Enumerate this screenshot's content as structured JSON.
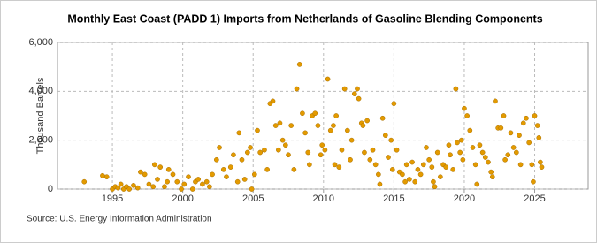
{
  "chart_data": {
    "type": "scatter",
    "title": "Monthly East Coast (PADD 1) Imports from Netherlands of Gasoline Blending Components",
    "y_label": "Thousand Barrels",
    "source": "Source: U.S. Energy Information Administration",
    "xlim": [
      1991.1,
      2028.8
    ],
    "xticks": [
      1995,
      2000,
      2005,
      2010,
      2015,
      2020,
      2025
    ],
    "ylim": [
      0,
      6000
    ],
    "yticks": [
      0,
      {
        "value": 2000,
        "label": "2,000"
      },
      {
        "value": 4000,
        "label": "4,000"
      },
      {
        "value": 6000,
        "label": "6,000"
      }
    ],
    "grid": true,
    "series": [
      {
        "color": "#e39a00",
        "x": [
          1993.0,
          1994.3,
          1994.6,
          1995.0,
          1995.2,
          1995.4,
          1995.6,
          1995.8,
          1996.0,
          1996.2,
          1996.5,
          1996.8,
          1997.0,
          1997.3,
          1997.6,
          1997.9,
          1998.0,
          1998.2,
          1998.4,
          1998.7,
          1998.9,
          1999.0,
          1999.3,
          1999.6,
          1999.9,
          2000.1,
          2000.4,
          2000.7,
          2000.9,
          2001.1,
          2001.4,
          2001.7,
          2001.9,
          2002.1,
          2002.4,
          2002.6,
          2002.9,
          2003.1,
          2003.4,
          2003.6,
          2003.9,
          2004.0,
          2004.2,
          2004.4,
          2004.6,
          2004.8,
          2004.9,
          2005.1,
          2005.3,
          2005.5,
          2005.8,
          2006.0,
          2006.2,
          2006.4,
          2006.6,
          2006.8,
          2006.9,
          2007.1,
          2007.3,
          2007.5,
          2007.7,
          2007.9,
          2008.1,
          2008.3,
          2008.5,
          2008.7,
          2008.9,
          2009.0,
          2009.2,
          2009.4,
          2009.6,
          2009.8,
          2009.9,
          2010.1,
          2010.3,
          2010.5,
          2010.7,
          2010.8,
          2010.9,
          2011.1,
          2011.3,
          2011.5,
          2011.7,
          2011.9,
          2012.0,
          2012.2,
          2012.4,
          2012.5,
          2012.7,
          2012.8,
          2012.9,
          2013.1,
          2013.3,
          2013.5,
          2013.7,
          2013.9,
          2014.0,
          2014.2,
          2014.4,
          2014.6,
          2014.8,
          2014.9,
          2015.0,
          2015.2,
          2015.4,
          2015.6,
          2015.8,
          2015.9,
          2016.1,
          2016.3,
          2016.5,
          2016.7,
          2016.9,
          2017.1,
          2017.3,
          2017.5,
          2017.7,
          2017.8,
          2017.9,
          2018.1,
          2018.3,
          2018.5,
          2018.7,
          2018.9,
          2019.0,
          2019.2,
          2019.4,
          2019.5,
          2019.7,
          2019.8,
          2019.9,
          2020.0,
          2020.2,
          2020.4,
          2020.6,
          2020.8,
          2020.9,
          2021.1,
          2021.3,
          2021.5,
          2021.7,
          2021.9,
          2022.0,
          2022.2,
          2022.4,
          2022.6,
          2022.8,
          2022.9,
          2023.1,
          2023.3,
          2023.5,
          2023.7,
          2023.9,
          2024.0,
          2024.2,
          2024.4,
          2024.6,
          2024.8,
          2024.9,
          2025.0,
          2025.2,
          2025.3,
          2025.4,
          2025.5
        ],
        "values": [
          300,
          550,
          500,
          0,
          100,
          50,
          200,
          0,
          100,
          0,
          150,
          50,
          700,
          600,
          200,
          100,
          1000,
          400,
          900,
          100,
          300,
          800,
          600,
          300,
          0,
          200,
          500,
          0,
          300,
          400,
          200,
          300,
          100,
          600,
          1200,
          1700,
          800,
          500,
          900,
          1400,
          300,
          2300,
          1200,
          400,
          1500,
          1700,
          0,
          600,
          2400,
          1500,
          1600,
          800,
          3500,
          3600,
          2600,
          1600,
          2700,
          2000,
          1800,
          1400,
          2600,
          800,
          4100,
          5100,
          3100,
          2300,
          1500,
          1000,
          3000,
          3100,
          2600,
          1400,
          1800,
          1600,
          4500,
          2400,
          2600,
          1000,
          3000,
          900,
          1600,
          4100,
          2400,
          1200,
          2000,
          3900,
          4100,
          3700,
          2700,
          2600,
          1500,
          2800,
          1200,
          1600,
          1000,
          600,
          200,
          2900,
          2200,
          1300,
          2000,
          800,
          3500,
          1600,
          700,
          600,
          300,
          1000,
          400,
          1100,
          300,
          800,
          600,
          1000,
          1700,
          1200,
          900,
          300,
          100,
          1500,
          500,
          1000,
          900,
          1800,
          1400,
          800,
          4100,
          1900,
          1500,
          2000,
          1200,
          3300,
          3000,
          2400,
          1700,
          1000,
          200,
          1800,
          1500,
          1300,
          1100,
          700,
          500,
          3600,
          2500,
          2500,
          3000,
          1200,
          1400,
          2300,
          1700,
          1500,
          2200,
          1000,
          2700,
          2900,
          1900,
          1000,
          300,
          3000,
          2600,
          2100,
          1100,
          900
        ]
      }
    ]
  }
}
